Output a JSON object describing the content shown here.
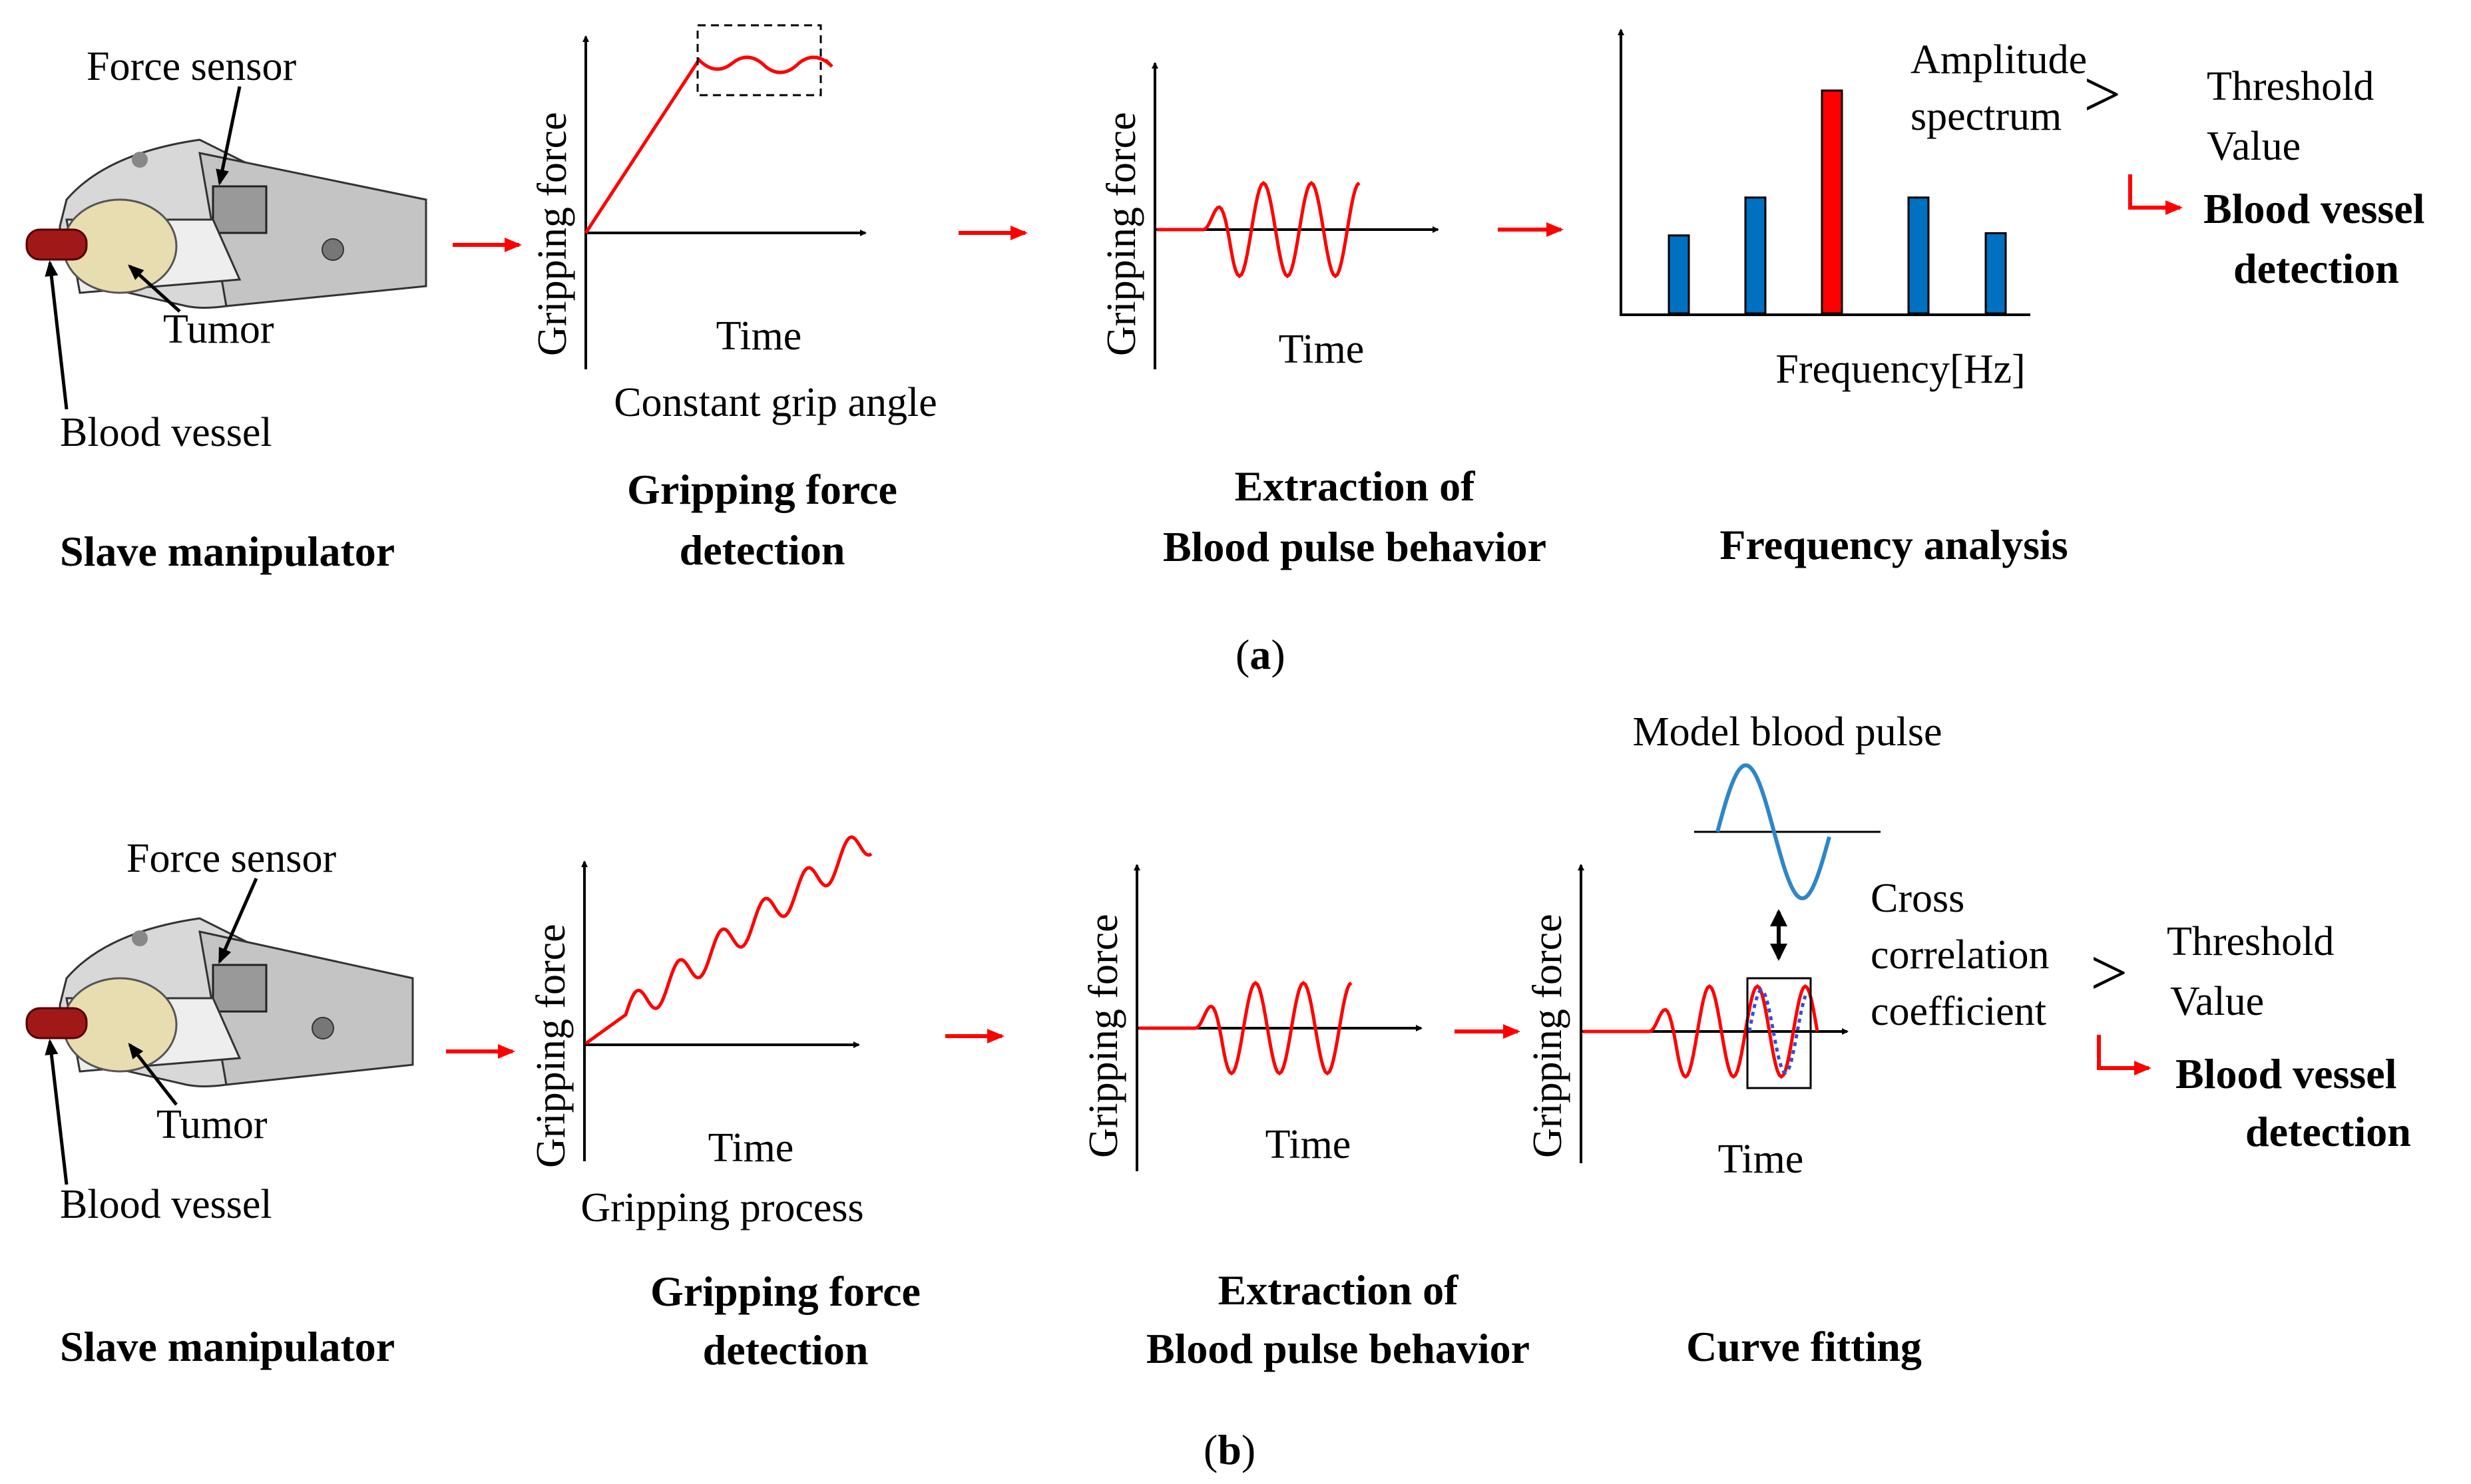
{
  "panel_a": {
    "caption_open": "(",
    "caption_letter": "a",
    "caption_close": ")",
    "manipulator": {
      "force_sensor": "Force sensor",
      "tumor": "Tumor",
      "blood_vessel": "Blood vessel",
      "title": "Slave manipulator"
    },
    "gripping": {
      "ylabel": "Gripping force",
      "xlabel": "Time",
      "note": "Constant grip angle",
      "title_line1": "Gripping force",
      "title_line2": "detection"
    },
    "extraction": {
      "ylabel": "Gripping force",
      "xlabel": "Time",
      "title_line1": "Extraction of",
      "title_line2": "Blood pulse behavior"
    },
    "frequency": {
      "xlabel": "Frequency[Hz]",
      "title": "Frequency analysis",
      "spectrum_line1": "Amplitude",
      "spectrum_line2": "spectrum",
      "gt": ">",
      "threshold_line1": "Threshold",
      "threshold_line2": "Value",
      "result_line1": "Blood vessel",
      "result_line2": "detection",
      "bars": [
        {
          "value": 0.35,
          "highlight": false
        },
        {
          "value": 0.52,
          "highlight": false
        },
        {
          "value": 1.0,
          "highlight": true
        },
        {
          "value": 0.52,
          "highlight": false
        },
        {
          "value": 0.36,
          "highlight": false
        }
      ]
    }
  },
  "panel_b": {
    "caption_open": "(",
    "caption_letter": "b",
    "caption_close": ")",
    "manipulator": {
      "force_sensor": "Force sensor",
      "tumor": "Tumor",
      "blood_vessel": "Blood vessel",
      "title": "Slave manipulator"
    },
    "gripping": {
      "ylabel": "Gripping force",
      "xlabel": "Time",
      "note": "Gripping process",
      "title_line1": "Gripping force",
      "title_line2": "detection"
    },
    "extraction": {
      "ylabel": "Gripping force",
      "xlabel": "Time",
      "title_line1": "Extraction of",
      "title_line2": "Blood pulse behavior"
    },
    "curve_fitting": {
      "ylabel": "Gripping force",
      "xlabel": "Time",
      "title": "Curve fitting",
      "model_label": "Model blood pulse",
      "cc_line1": "Cross",
      "cc_line2": "correlation",
      "cc_line3": "coefficient",
      "gt": ">",
      "threshold_line1": "Threshold",
      "threshold_line2": "Value",
      "result_line1": "Blood vessel",
      "result_line2": "detection"
    }
  },
  "colors": {
    "signal": "#ff0000",
    "bar": "#0070c0",
    "bar_highlight": "#ff0000",
    "model": "#2e86c8",
    "fit_dotted": "#3050d0"
  }
}
